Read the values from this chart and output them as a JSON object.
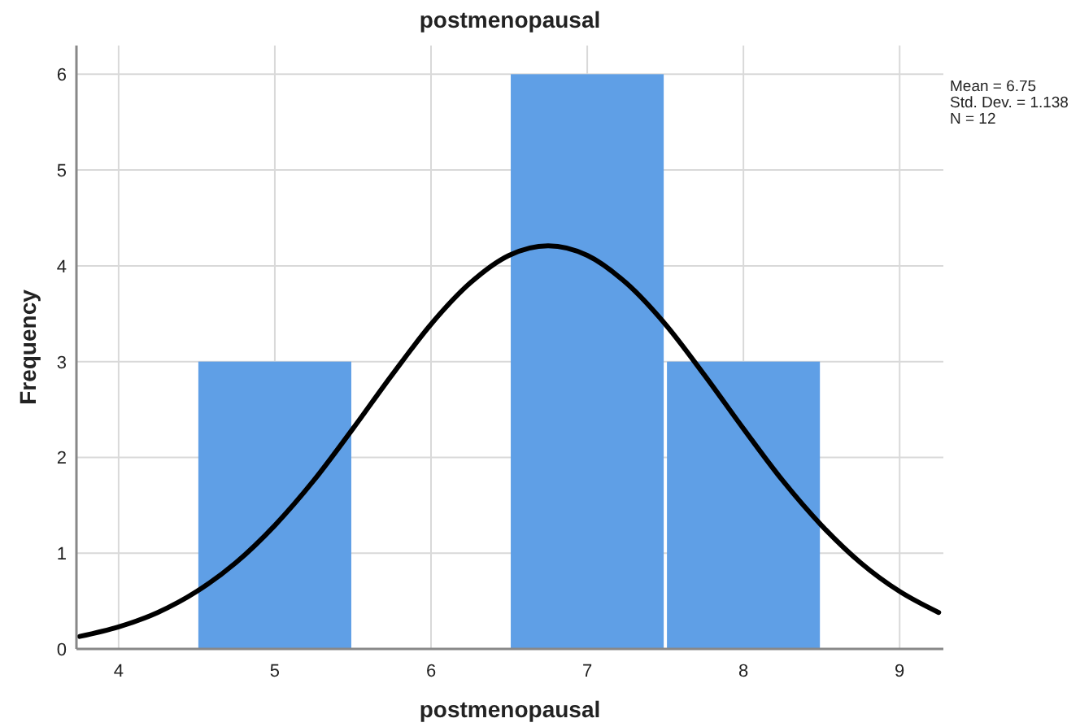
{
  "chart_data": {
    "type": "histogram",
    "title": "postmenopausal",
    "xlabel": "postmenopausal",
    "ylabel": "Frequency",
    "bins": [
      4.5,
      5.5,
      6.5,
      7.5,
      8.5
    ],
    "values": [
      3,
      0,
      6,
      3
    ],
    "color": "#5f9fe6",
    "series": [
      {
        "type": "line",
        "color": "#000000",
        "x": [
          3.75,
          4,
          4.25,
          4.5,
          4.75,
          5,
          5.25,
          5.5,
          5.75,
          6,
          6.25,
          6.5,
          6.75,
          7,
          7.25,
          7.5,
          7.75,
          8,
          8.25,
          8.5,
          8.75,
          9,
          9.25
        ],
        "values": [
          0.13,
          0.23,
          0.38,
          0.6,
          0.9,
          1.29,
          1.76,
          2.3,
          2.86,
          3.39,
          3.82,
          4.11,
          4.21,
          4.11,
          3.82,
          3.39,
          2.86,
          2.3,
          1.76,
          1.29,
          0.9,
          0.6,
          0.38
        ]
      }
    ],
    "xlim": [
      3.73,
      9.28
    ],
    "xticks": [
      4,
      5,
      6,
      7,
      8,
      9
    ],
    "ylim": [
      0,
      6.3
    ],
    "yticks": [
      0,
      1,
      2,
      3,
      4,
      5,
      6
    ],
    "grid": true,
    "annotations": [
      "Mean = 6.75",
      "Std. Dev. = 1.138",
      "N = 12"
    ]
  }
}
